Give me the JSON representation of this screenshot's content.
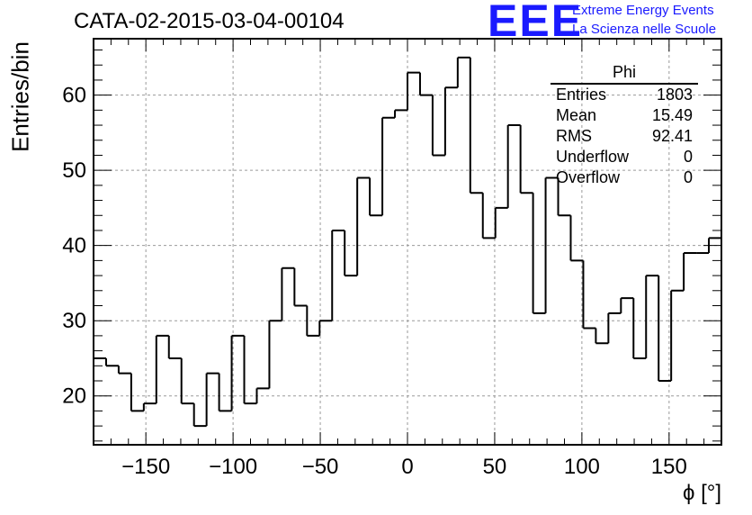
{
  "header": {
    "title": "CATA-02-2015-03-04-00104",
    "logo_text": "EEE",
    "logo_line1": "Extreme Energy Events",
    "logo_line2": "La Scienza nelle Scuole",
    "brand_color": "#1a1aff"
  },
  "stats_box": {
    "name": "Phi",
    "rows": [
      {
        "label": "Entries",
        "value": "1803"
      },
      {
        "label": "Mean",
        "value": "15.49"
      },
      {
        "label": "RMS",
        "value": "92.41"
      },
      {
        "label": "Underflow",
        "value": "0"
      },
      {
        "label": "Overflow",
        "value": "0"
      }
    ]
  },
  "chart_data": {
    "type": "bar",
    "style": "step-histogram",
    "title": "CATA-02-2015-03-04-00104",
    "xlabel": "ϕ [°]",
    "ylabel": "Entries/bin",
    "xlim": [
      -180,
      180
    ],
    "ylim": [
      13.5,
      67.5
    ],
    "bin_width": 7.2,
    "x_ticks": [
      -150,
      -100,
      -50,
      0,
      50,
      100,
      150
    ],
    "x_tick_labels": [
      "−150",
      "−100",
      "−50",
      "0",
      "50",
      "100",
      "150"
    ],
    "y_ticks": [
      20,
      30,
      40,
      50,
      60
    ],
    "y_tick_labels": [
      "20",
      "30",
      "40",
      "50",
      "60"
    ],
    "grid": true,
    "values": [
      25,
      24,
      23,
      18,
      19,
      28,
      25,
      19,
      16,
      23,
      18,
      28,
      19,
      21,
      30,
      37,
      32,
      28,
      30,
      42,
      36,
      49,
      44,
      57,
      58,
      63,
      60,
      52,
      61,
      65,
      47,
      41,
      45,
      56,
      47,
      31,
      49,
      44,
      38,
      29,
      27,
      31,
      33,
      25,
      36,
      22,
      34,
      39,
      39,
      41
    ]
  }
}
